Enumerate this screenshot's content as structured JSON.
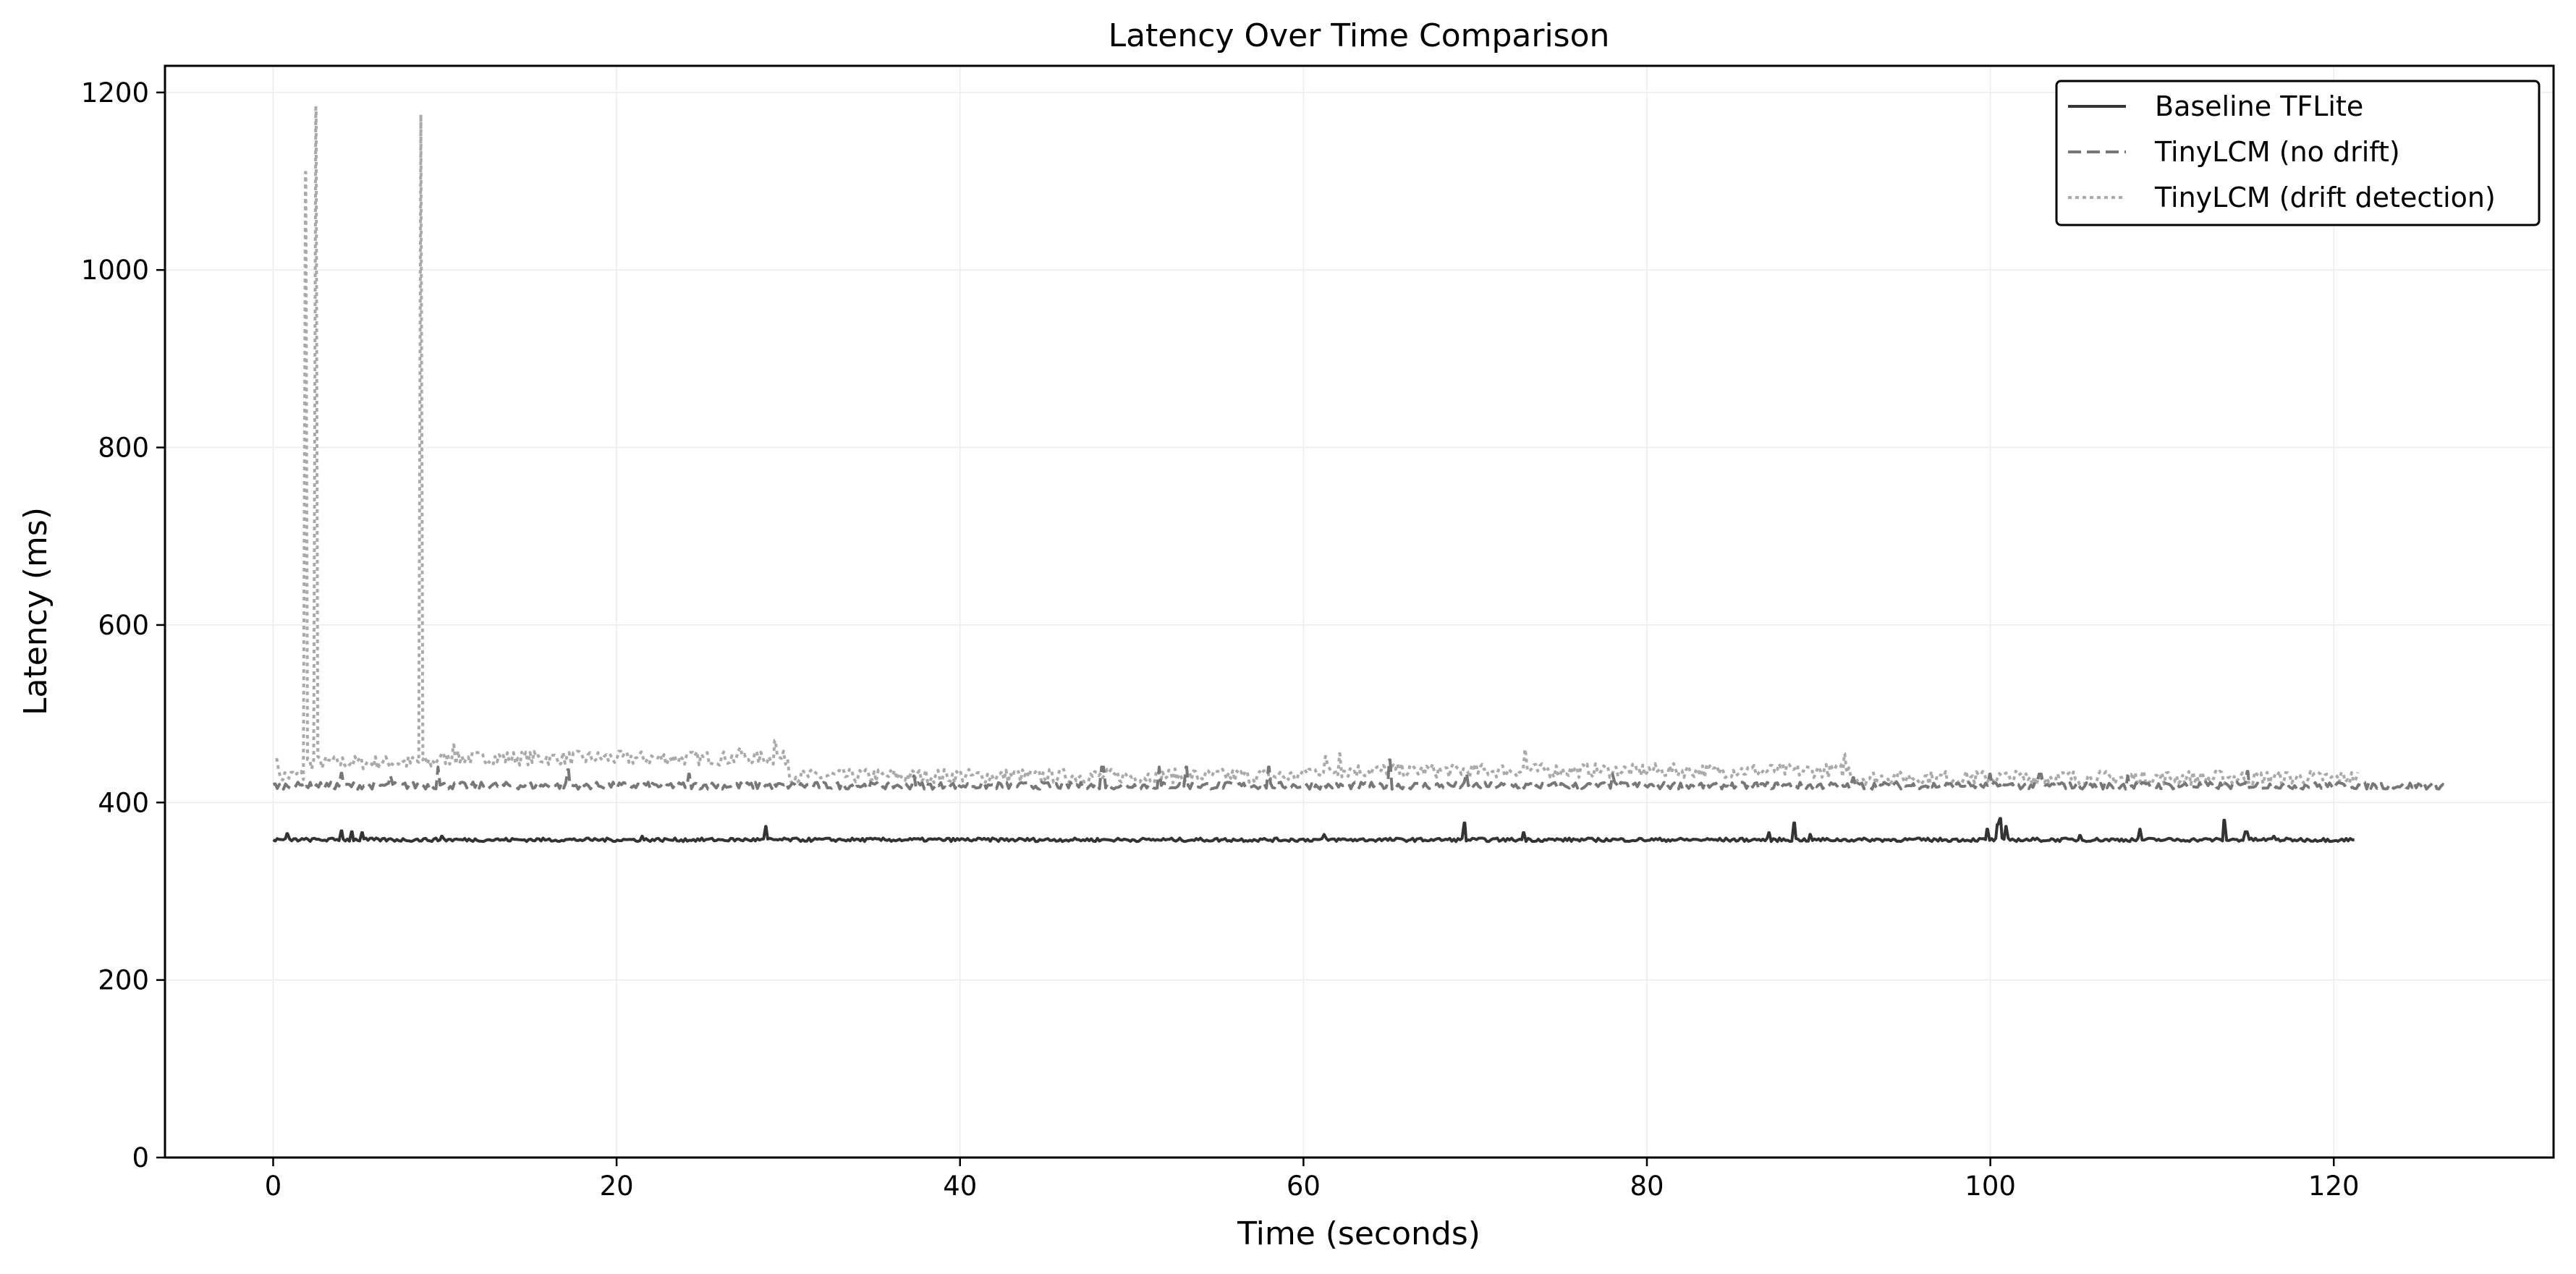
{
  "chart_data": {
    "type": "line",
    "title": "Latency Over Time Comparison",
    "xlabel": "Time (seconds)",
    "ylabel": "Latency (ms)",
    "xlim": [
      -6.3,
      132.8
    ],
    "ylim": [
      0,
      1230
    ],
    "x_ticks": [
      0,
      20,
      40,
      60,
      80,
      100,
      120
    ],
    "y_ticks": [
      0,
      200,
      400,
      600,
      800,
      1000,
      1200
    ],
    "grid": true,
    "legend_position": "top-right",
    "series": [
      {
        "name": "Baseline TFLite",
        "color": "#333333",
        "style": "solid",
        "x_start": 0,
        "x_end": 121.3,
        "base": 358,
        "noise": 2,
        "spikes": [
          [
            0.8,
            365
          ],
          [
            4,
            368
          ],
          [
            4.6,
            367
          ],
          [
            5.2,
            366
          ],
          [
            9.8,
            362
          ],
          [
            21.5,
            362
          ],
          [
            28.7,
            373
          ],
          [
            61.2,
            364
          ],
          [
            69.4,
            377
          ],
          [
            72.8,
            366
          ],
          [
            87.1,
            366
          ],
          [
            88.6,
            377
          ],
          [
            89.5,
            364
          ],
          [
            99.8,
            370
          ],
          [
            100.4,
            375
          ],
          [
            100.6,
            382
          ],
          [
            100.9,
            373
          ],
          [
            105.2,
            363
          ],
          [
            108.7,
            370
          ],
          [
            113.6,
            380
          ],
          [
            114.9,
            367
          ],
          [
            116.5,
            362
          ]
        ]
      },
      {
        "name": "TinyLCM (no drift)",
        "color": "#777777",
        "style": "dashed",
        "x_start": 0,
        "x_end": 126.7,
        "base": 419,
        "noise": 4,
        "spikes": [
          [
            4,
            433
          ],
          [
            6.8,
            430
          ],
          [
            9.6,
            440
          ],
          [
            17.2,
            437
          ],
          [
            24.2,
            432
          ],
          [
            37.3,
            430
          ],
          [
            48.3,
            440
          ],
          [
            51.6,
            440
          ],
          [
            53.2,
            440
          ],
          [
            58,
            440
          ],
          [
            65,
            448
          ],
          [
            69.5,
            433
          ],
          [
            78,
            432
          ],
          [
            92,
            428
          ],
          [
            100,
            432
          ],
          [
            102.9,
            432
          ],
          [
            108,
            430
          ],
          [
            115,
            435
          ]
        ]
      },
      {
        "name": "TinyLCM (drift detection)",
        "color": "#aaaaaa",
        "style": "dotted",
        "x_start": 0.2,
        "x_end": 121.5,
        "base": 430,
        "noise": 8,
        "plateaus": [
          [
            2,
            9.5,
            445
          ],
          [
            9.5,
            30,
            450
          ],
          [
            30,
            60,
            430
          ],
          [
            60,
            92,
            436
          ],
          [
            92,
            121.5,
            428
          ]
        ],
        "spikes": [
          [
            0.2,
            450
          ],
          [
            1.9,
            1110
          ],
          [
            2.5,
            1183
          ],
          [
            8.6,
            1175
          ],
          [
            10.5,
            465
          ],
          [
            27.2,
            462
          ],
          [
            29.2,
            470
          ],
          [
            61.3,
            452
          ],
          [
            62.1,
            455
          ],
          [
            72.9,
            460
          ],
          [
            91.5,
            455
          ]
        ]
      }
    ]
  }
}
